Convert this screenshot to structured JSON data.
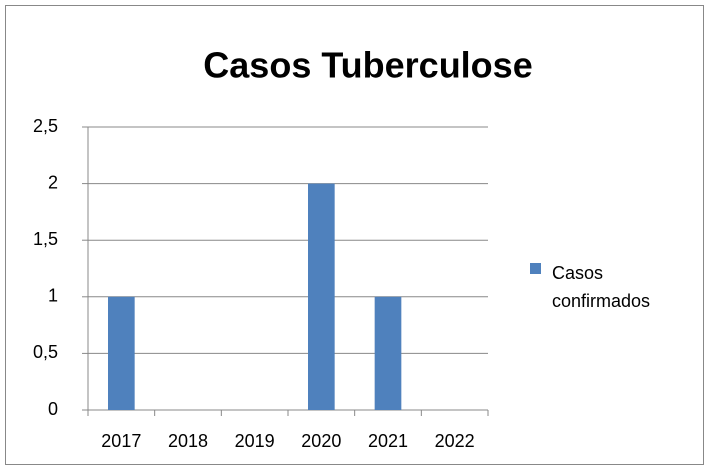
{
  "chart_data": {
    "type": "bar",
    "title": "Casos Tuberculose",
    "categories": [
      "2017",
      "2018",
      "2019",
      "2020",
      "2021",
      "2022"
    ],
    "series": [
      {
        "name": "Casos confirmados",
        "color": "#4f81bd",
        "values": [
          1,
          0,
          0,
          2,
          1,
          0
        ]
      }
    ],
    "ylim": [
      0,
      2.5
    ],
    "yticks": [
      0,
      {
        "value": 0.5,
        "label": "0,5"
      },
      1,
      {
        "value": 1.5,
        "label": "1,5"
      },
      2,
      {
        "value": 2.5,
        "label": "2,5"
      }
    ],
    "grid": true,
    "legend": "right"
  }
}
